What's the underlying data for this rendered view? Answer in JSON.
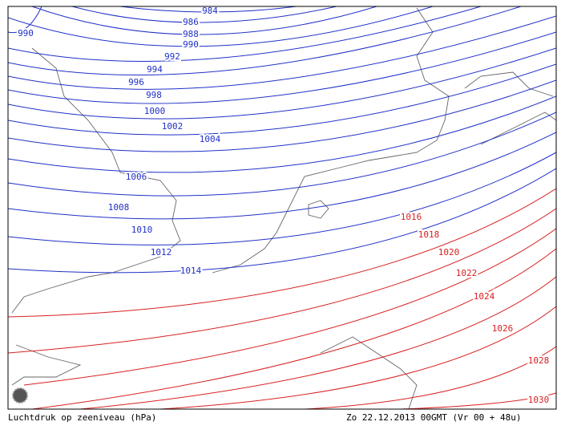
{
  "isobars": [
    {
      "label": 984,
      "color": "#2030c8"
    },
    {
      "label": 986,
      "color": "#2030c8"
    },
    {
      "label": 988,
      "color": "#2030c8"
    },
    {
      "label": 990,
      "color": "#2030c8"
    },
    {
      "label": 990,
      "color": "#2030c8"
    },
    {
      "label": 992,
      "color": "#2030c8"
    },
    {
      "label": 994,
      "color": "#2030c8"
    },
    {
      "label": 996,
      "color": "#2030c8"
    },
    {
      "label": 998,
      "color": "#2030c8"
    },
    {
      "label": 1000,
      "color": "#2030c8"
    },
    {
      "label": 1002,
      "color": "#2030c8"
    },
    {
      "label": 1004,
      "color": "#2030c8"
    },
    {
      "label": 1006,
      "color": "#2030c8"
    },
    {
      "label": 1008,
      "color": "#2030c8"
    },
    {
      "label": 1010,
      "color": "#2030c8"
    },
    {
      "label": 1012,
      "color": "#2030c8"
    },
    {
      "label": 1014,
      "color": "#2030c8"
    },
    {
      "label": 1016,
      "color": "#d82020"
    },
    {
      "label": 1018,
      "color": "#d82020"
    },
    {
      "label": 1020,
      "color": "#d82020"
    },
    {
      "label": 1022,
      "color": "#d82020"
    },
    {
      "label": 1024,
      "color": "#d82020"
    },
    {
      "label": 1026,
      "color": "#d82020"
    },
    {
      "label": 1028,
      "color": "#d82020"
    },
    {
      "label": 1030,
      "color": "#d82020"
    }
  ],
  "footer": {
    "left": "Luchtdruk op zeeniveau (hPa)",
    "right": "Zo 22.12.2013 00GMT (Vr 00 + 48u)"
  }
}
